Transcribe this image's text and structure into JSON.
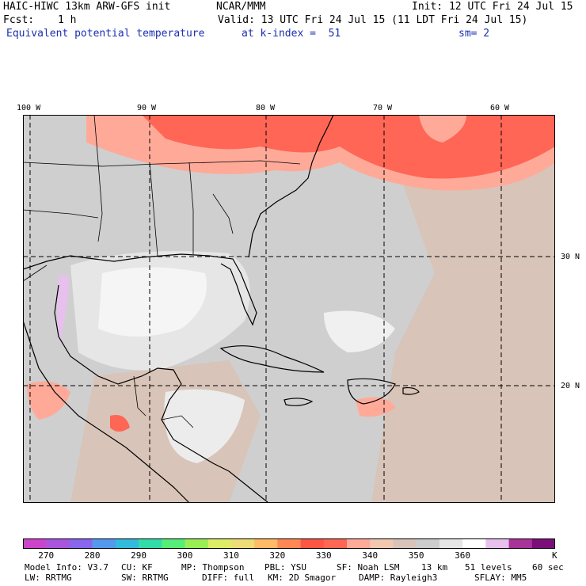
{
  "header": {
    "model": "HAIC-HIWC 13km ARW-GFS init",
    "org": "NCAR/MMM",
    "init": "Init: 12 UTC Fri 24 Jul 15",
    "fcst_label": "Fcst:",
    "fcst_value": "1 h",
    "valid": "Valid: 13 UTC Fri 24 Jul 15 (11 LDT Fri 24 Jul 15)",
    "field": "Equivalent potential temperature",
    "level": "at k-index =  51",
    "smooth": "sm= 2"
  },
  "map": {
    "lon_labels": [
      "100 W",
      "90 W",
      "80 W",
      "70 W",
      "60 W"
    ],
    "lat_labels": [
      "30 N",
      "20 N"
    ]
  },
  "colorbar": {
    "colors": [
      "#cc44cc",
      "#aa55dd",
      "#8866ee",
      "#5599ee",
      "#33bbdd",
      "#33ddaa",
      "#55ee77",
      "#99ee55",
      "#dded66",
      "#eedd77",
      "#ffbb66",
      "#ff8855",
      "#ff5544",
      "#ff6655",
      "#ffaa99",
      "#f2c8b0",
      "#d8c4b8",
      "#cccccc",
      "#e6e6e6",
      "#ffffff",
      "#e8c0ee",
      "#aa3399",
      "#7a0f7a"
    ],
    "labels": [
      "270",
      "280",
      "290",
      "300",
      "310",
      "320",
      "330",
      "340",
      "350",
      "360"
    ],
    "unit": "K"
  },
  "footer": {
    "line1": [
      "Model Info: V3.7",
      "CU: KF",
      "MP: Thompson",
      "PBL: YSU",
      "SF: Noah LSM",
      "13 km",
      "51 levels",
      "60 sec"
    ],
    "line2": [
      "LW: RRTMG",
      "SW: RRTMG",
      "DIFF: full",
      "KM: 2D Smagor",
      "DAMP: Rayleigh3",
      "SFLAY: MM5"
    ]
  }
}
